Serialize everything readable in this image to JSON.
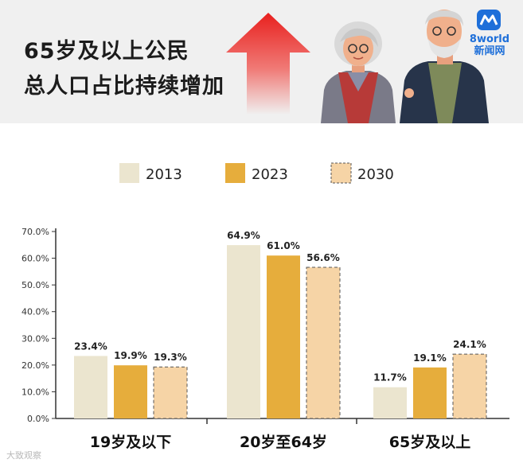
{
  "header": {
    "title_line1": "65岁及以上公民",
    "title_line2": "总人口占比持续增加",
    "logo_top": "8world",
    "logo_bottom": "新闻网"
  },
  "colors": {
    "header_bg": "#f0f0f0",
    "arrow": "#e8201e",
    "series_2013": "#ebe5cf",
    "series_2023": "#e6ad3c",
    "series_2030": "#f6d4a6",
    "axis": "#333333"
  },
  "footer": {
    "watermark": "大致观察"
  },
  "chart_data": {
    "type": "bar",
    "categories": [
      "19岁及以下",
      "20岁至64岁",
      "65岁及以上"
    ],
    "series": [
      {
        "name": "2013",
        "values": [
          23.4,
          64.9,
          11.7
        ],
        "labels": [
          "23.4%",
          "64.9%",
          "11.7%"
        ],
        "dashed": false
      },
      {
        "name": "2023",
        "values": [
          19.9,
          61.0,
          19.1
        ],
        "labels": [
          "19.9%",
          "61.0%",
          "19.1%"
        ],
        "dashed": false
      },
      {
        "name": "2030",
        "values": [
          19.3,
          56.6,
          24.1
        ],
        "labels": [
          "19.3%",
          "56.6%",
          "24.1%"
        ],
        "dashed": true
      }
    ],
    "yticks": [
      "0.0%",
      "10.0%",
      "20.0%",
      "30.0%",
      "40.0%",
      "50.0%",
      "60.0%",
      "70.0%"
    ],
    "ylim": [
      0,
      70
    ],
    "legend_position": "top-center",
    "grid": false
  }
}
